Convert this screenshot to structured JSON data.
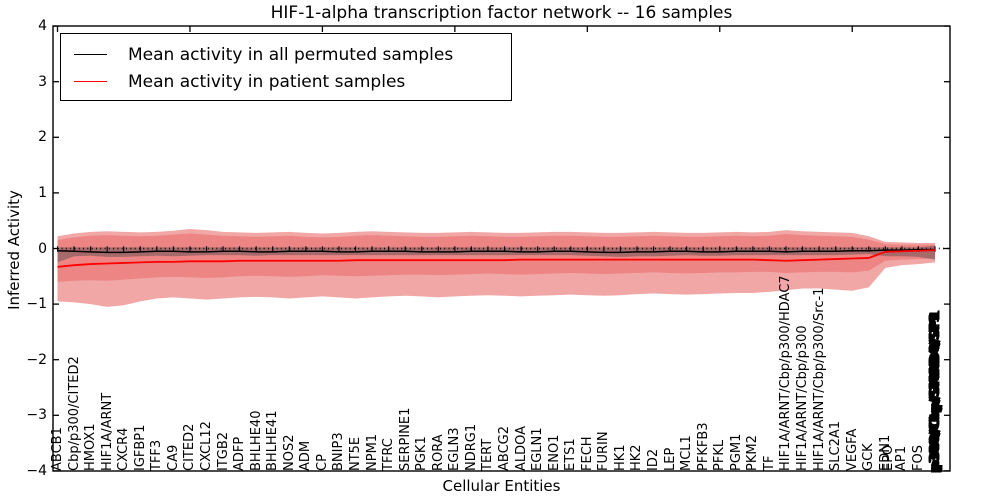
{
  "figure": {
    "title": "HIF-1-alpha transcription factor network -- 16 samples",
    "xlabel": "Cellular Entities",
    "ylabel": "Inferred Activity"
  },
  "legend": {
    "items": [
      {
        "label": "Mean activity in all permuted samples",
        "color": "#000000"
      },
      {
        "label": "Mean activity in patient samples",
        "color": "#ff0000"
      }
    ]
  },
  "axes": {
    "ylim": [
      -4,
      4
    ],
    "y_tick_labels": [
      "4",
      "3",
      "2",
      "1",
      "0",
      "−1",
      "−2",
      "−3",
      "−4"
    ],
    "y_tick_values": [
      4,
      3,
      2,
      1,
      0,
      -1,
      -2,
      -3,
      -4
    ]
  },
  "chart_data": {
    "type": "line",
    "title": "HIF-1-alpha transcription factor network -- 16 samples",
    "xlabel": "Cellular Entities",
    "ylabel": "Inferred Activity",
    "ylim": [
      -4,
      4
    ],
    "grid": false,
    "legend_position": "upper left",
    "zero_line_style": "dotted",
    "categories": [
      "ABCB1",
      "Cbp/p300/CITED2",
      "HMOX1",
      "HIF1A/ARNT",
      "CXCR4",
      "IGFBP1",
      "TFF3",
      "CA9",
      "CITED2",
      "CXCL12",
      "ITGB2",
      "ADFP",
      "BHLHE40",
      "BHLHE41",
      "NOS2",
      "ADM",
      "CP",
      "BNIP3",
      "NT5E",
      "NPM1",
      "TFRC",
      "SERPINE1",
      "PGK1",
      "RORA",
      "EGLN3",
      "NDRG1",
      "TERT",
      "ABCG2",
      "ALDOA",
      "EGLN1",
      "ENO1",
      "ETS1",
      "FECH",
      "FURIN",
      "HK1",
      "HK2",
      "ID2",
      "LEP",
      "MCL1",
      "PFKFB3",
      "PFKL",
      "PGM1",
      "PKM2",
      "TF",
      "HIF1A/ARNT/Cbp/p300/HDAC7",
      "HIF1A/ARNT/Cbp/p300",
      "HIF1A/ARNT/Cbp/p300/Src-1",
      "SLC2A1",
      "VEGFA",
      "GCK",
      "EDN1",
      "AP1",
      "FOS",
      "p300/Cbp/SMAD4/SP1"
    ],
    "overlapping_extra_labels": [
      {
        "slot": 50,
        "label": "EPO"
      }
    ],
    "last_category_is_overlapped_cluster": true,
    "series": [
      {
        "name": "Mean activity in all permuted samples",
        "color": "#000000",
        "values": [
          -0.04,
          -0.05,
          -0.06,
          -0.07,
          -0.07,
          -0.06,
          -0.05,
          -0.05,
          -0.06,
          -0.06,
          -0.05,
          -0.05,
          -0.06,
          -0.06,
          -0.05,
          -0.05,
          -0.05,
          -0.06,
          -0.06,
          -0.05,
          -0.05,
          -0.05,
          -0.06,
          -0.06,
          -0.06,
          -0.05,
          -0.05,
          -0.05,
          -0.06,
          -0.06,
          -0.05,
          -0.05,
          -0.06,
          -0.07,
          -0.07,
          -0.06,
          -0.06,
          -0.05,
          -0.05,
          -0.06,
          -0.06,
          -0.05,
          -0.05,
          -0.05,
          -0.06,
          -0.05,
          -0.05,
          -0.05,
          -0.04,
          -0.04,
          -0.03,
          -0.03,
          -0.02,
          -0.02
        ]
      },
      {
        "name": "Mean activity in patient samples",
        "color": "#ff0000",
        "values": [
          -0.33,
          -0.3,
          -0.28,
          -0.27,
          -0.26,
          -0.25,
          -0.24,
          -0.24,
          -0.23,
          -0.23,
          -0.23,
          -0.22,
          -0.22,
          -0.22,
          -0.22,
          -0.22,
          -0.22,
          -0.22,
          -0.21,
          -0.21,
          -0.21,
          -0.21,
          -0.21,
          -0.21,
          -0.21,
          -0.21,
          -0.21,
          -0.21,
          -0.2,
          -0.2,
          -0.2,
          -0.2,
          -0.2,
          -0.2,
          -0.2,
          -0.2,
          -0.2,
          -0.2,
          -0.2,
          -0.2,
          -0.2,
          -0.2,
          -0.2,
          -0.21,
          -0.22,
          -0.21,
          -0.2,
          -0.19,
          -0.18,
          -0.17,
          -0.06,
          -0.05,
          -0.04,
          -0.03
        ]
      }
    ],
    "bands": {
      "patient_outer_top": [
        0.22,
        0.27,
        0.3,
        0.31,
        0.3,
        0.29,
        0.3,
        0.32,
        0.35,
        0.33,
        0.3,
        0.29,
        0.28,
        0.29,
        0.3,
        0.28,
        0.27,
        0.28,
        0.3,
        0.31,
        0.3,
        0.29,
        0.28,
        0.28,
        0.29,
        0.3,
        0.29,
        0.28,
        0.28,
        0.29,
        0.3,
        0.3,
        0.29,
        0.28,
        0.28,
        0.29,
        0.3,
        0.29,
        0.28,
        0.28,
        0.29,
        0.3,
        0.29,
        0.3,
        0.33,
        0.31,
        0.3,
        0.29,
        0.28,
        0.22,
        0.12,
        0.11,
        0.1,
        0.1
      ],
      "patient_outer_bottom": [
        -0.95,
        -0.97,
        -1.0,
        -1.05,
        -1.02,
        -0.95,
        -0.9,
        -0.88,
        -0.9,
        -0.92,
        -0.9,
        -0.88,
        -0.87,
        -0.88,
        -0.9,
        -0.88,
        -0.86,
        -0.88,
        -0.9,
        -0.88,
        -0.86,
        -0.85,
        -0.86,
        -0.88,
        -0.86,
        -0.85,
        -0.84,
        -0.85,
        -0.86,
        -0.85,
        -0.84,
        -0.83,
        -0.84,
        -0.85,
        -0.84,
        -0.82,
        -0.81,
        -0.82,
        -0.83,
        -0.82,
        -0.81,
        -0.8,
        -0.8,
        -0.78,
        -0.75,
        -0.72,
        -0.72,
        -0.74,
        -0.76,
        -0.7,
        -0.35,
        -0.3,
        -0.28,
        -0.25
      ],
      "patient_inner_top": [
        0.15,
        0.2,
        0.23,
        0.24,
        0.23,
        0.22,
        0.23,
        0.25,
        0.27,
        0.25,
        0.23,
        0.22,
        0.21,
        0.22,
        0.23,
        0.21,
        0.2,
        0.21,
        0.23,
        0.24,
        0.23,
        0.22,
        0.21,
        0.21,
        0.22,
        0.23,
        0.22,
        0.21,
        0.21,
        0.22,
        0.23,
        0.23,
        0.22,
        0.21,
        0.21,
        0.22,
        0.23,
        0.22,
        0.21,
        0.21,
        0.22,
        0.23,
        0.22,
        0.23,
        0.26,
        0.24,
        0.23,
        0.22,
        0.21,
        0.16,
        0.08,
        0.07,
        0.07,
        0.07
      ],
      "patient_inner_bottom": [
        -0.6,
        -0.58,
        -0.57,
        -0.58,
        -0.56,
        -0.54,
        -0.52,
        -0.51,
        -0.52,
        -0.53,
        -0.52,
        -0.5,
        -0.49,
        -0.5,
        -0.51,
        -0.5,
        -0.48,
        -0.49,
        -0.5,
        -0.49,
        -0.48,
        -0.47,
        -0.47,
        -0.48,
        -0.47,
        -0.46,
        -0.45,
        -0.46,
        -0.47,
        -0.46,
        -0.45,
        -0.44,
        -0.45,
        -0.46,
        -0.45,
        -0.44,
        -0.43,
        -0.44,
        -0.45,
        -0.44,
        -0.43,
        -0.43,
        -0.42,
        -0.42,
        -0.44,
        -0.43,
        -0.42,
        -0.42,
        -0.43,
        -0.4,
        -0.22,
        -0.2,
        -0.19,
        -0.18
      ],
      "permuted_top": [
        0.02,
        0.02,
        0.02,
        0.02,
        0.02,
        0.02,
        0.02,
        0.02,
        0.02,
        0.02,
        0.02,
        0.02,
        0.02,
        0.02,
        0.02,
        0.02,
        0.02,
        0.02,
        0.02,
        0.02,
        0.02,
        0.02,
        0.02,
        0.02,
        0.02,
        0.02,
        0.02,
        0.02,
        0.02,
        0.02,
        0.02,
        0.02,
        0.02,
        0.02,
        0.02,
        0.02,
        0.02,
        0.02,
        0.02,
        0.02,
        0.02,
        0.02,
        0.02,
        0.02,
        0.02,
        0.02,
        0.02,
        0.02,
        0.02,
        0.02,
        0.02,
        0.02,
        0.02,
        0.05
      ],
      "permuted_bottom": [
        -0.25,
        -0.14,
        -0.13,
        -0.15,
        -0.15,
        -0.14,
        -0.13,
        -0.14,
        -0.13,
        -0.12,
        -0.12,
        -0.12,
        -0.13,
        -0.12,
        -0.12,
        -0.12,
        -0.12,
        -0.12,
        -0.12,
        -0.12,
        -0.12,
        -0.12,
        -0.12,
        -0.12,
        -0.12,
        -0.12,
        -0.12,
        -0.12,
        -0.12,
        -0.12,
        -0.12,
        -0.12,
        -0.13,
        -0.14,
        -0.15,
        -0.14,
        -0.14,
        -0.13,
        -0.12,
        -0.13,
        -0.13,
        -0.12,
        -0.12,
        -0.12,
        -0.12,
        -0.12,
        -0.12,
        -0.12,
        -0.11,
        -0.1,
        -0.14,
        -0.14,
        -0.15,
        -0.2
      ]
    },
    "band_colors": {
      "patient_outer": "rgba(225,45,45,0.42)",
      "patient_inner": "rgba(225,45,45,0.27)",
      "permuted": "rgba(70,70,70,0.42)"
    },
    "point_markers": {
      "style": "vertical-tick",
      "y": -0.01,
      "half_height": 0.05
    }
  }
}
